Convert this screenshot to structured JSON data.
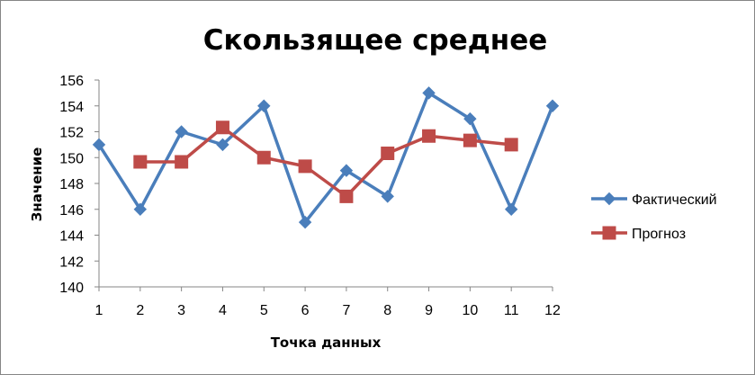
{
  "chart_data": {
    "type": "line",
    "title": "Скользящее среднее",
    "xlabel": "Точка данных",
    "ylabel": "Значение",
    "x": [
      1,
      2,
      3,
      4,
      5,
      6,
      7,
      8,
      9,
      10,
      11,
      12
    ],
    "x_tick_labels": [
      "1",
      "2",
      "3",
      "4",
      "5",
      "6",
      "7",
      "8",
      "9",
      "10",
      "11",
      "12"
    ],
    "ylim": [
      140,
      156
    ],
    "y_ticks": [
      140,
      142,
      144,
      146,
      148,
      150,
      152,
      154,
      156
    ],
    "y_tick_labels": [
      "140",
      "142",
      "144",
      "146",
      "148",
      "150",
      "152",
      "154",
      "156"
    ],
    "grid": false,
    "legend_position": "right",
    "series": [
      {
        "name": "Фактический",
        "color": "#4A7EBB",
        "marker": "diamond",
        "x": [
          1,
          2,
          3,
          4,
          5,
          6,
          7,
          8,
          9,
          10,
          11,
          12
        ],
        "values": [
          151,
          146,
          152,
          151,
          154,
          145,
          149,
          147,
          155,
          153,
          146,
          154
        ]
      },
      {
        "name": "Прогноз",
        "color": "#BE4B48",
        "marker": "square",
        "x": [
          2,
          3,
          4,
          5,
          6,
          7,
          8,
          9,
          10,
          11
        ],
        "values": [
          149.67,
          149.67,
          152.33,
          150,
          149.33,
          147,
          150.33,
          151.67,
          151.33,
          151
        ]
      }
    ]
  }
}
